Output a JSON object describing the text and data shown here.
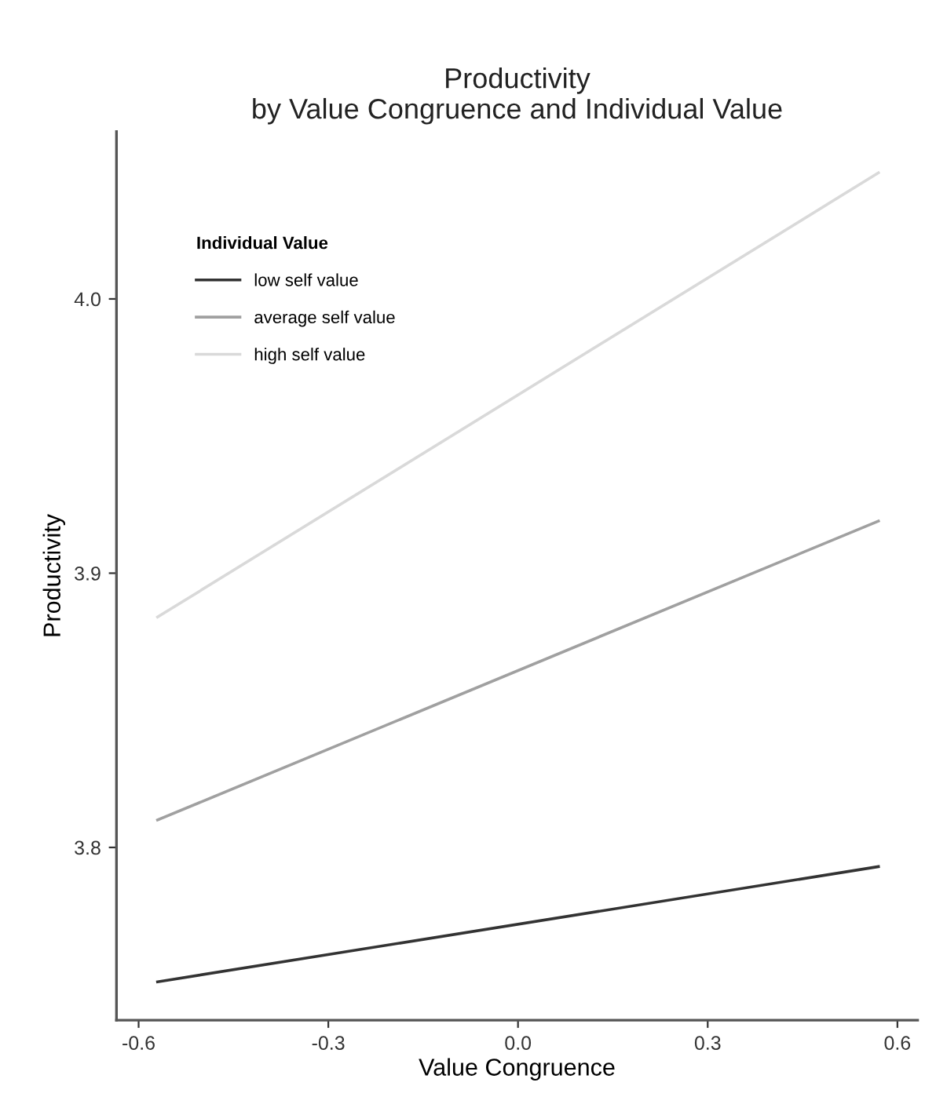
{
  "chart_data": {
    "type": "line",
    "title": "Productivity\nby Value Congruence and Individual Value",
    "xlabel": "Value Congruence",
    "ylabel": "Productivity",
    "legend_title": "Individual Value",
    "x": [
      -0.57,
      0.57
    ],
    "series": [
      {
        "name": "low self value",
        "color": "#333333",
        "values": [
          3.751,
          3.793
        ]
      },
      {
        "name": "average self value",
        "color": "#a0a0a0",
        "values": [
          3.81,
          3.919
        ]
      },
      {
        "name": "high self value",
        "color": "#d9d9d9",
        "values": [
          3.884,
          4.046
        ]
      }
    ],
    "xlim": [
      -0.635,
      0.632
    ],
    "ylim": [
      3.737,
      4.061
    ],
    "xticks": [
      {
        "value": -0.6,
        "label": "-0.6"
      },
      {
        "value": -0.3,
        "label": "-0.3"
      },
      {
        "value": 0.0,
        "label": "0.0"
      },
      {
        "value": 0.3,
        "label": "0.3"
      },
      {
        "value": 0.6,
        "label": "0.6"
      }
    ],
    "yticks": [
      3.8,
      3.9,
      {
        "value": 4.0,
        "label": "4.0"
      }
    ],
    "grid": false,
    "legend": "top left",
    "marker": "none",
    "line_style": "solid"
  }
}
